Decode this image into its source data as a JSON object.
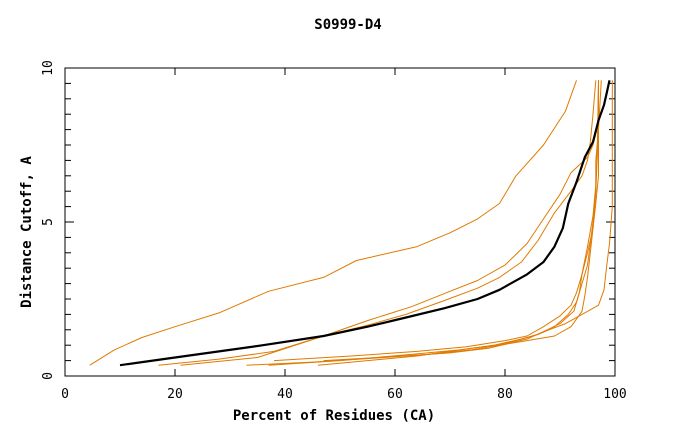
{
  "chart_data": {
    "type": "line",
    "title": "S0999-D4",
    "xlabel": "Percent of Residues (CA)",
    "ylabel": "Distance Cutoff, A",
    "xlim": [
      0,
      100
    ],
    "ylim": [
      0,
      10
    ],
    "x_ticks": [
      0,
      20,
      40,
      60,
      80,
      100
    ],
    "y_ticks": [
      0,
      5,
      10
    ],
    "grid": false,
    "legend": "none",
    "colors": {
      "reference": "#000000",
      "models": "#e07a00"
    },
    "series": [
      {
        "role": "reference",
        "points": [
          [
            10,
            0.35
          ],
          [
            14,
            0.45
          ],
          [
            20,
            0.6
          ],
          [
            28,
            0.8
          ],
          [
            36,
            1.0
          ],
          [
            47,
            1.3
          ],
          [
            55,
            1.6
          ],
          [
            62,
            1.9
          ],
          [
            69,
            2.2
          ],
          [
            75,
            2.5
          ],
          [
            79,
            2.8
          ],
          [
            84,
            3.3
          ],
          [
            87,
            3.7
          ],
          [
            89,
            4.2
          ],
          [
            90.5,
            4.8
          ],
          [
            91.5,
            5.6
          ],
          [
            93,
            6.3
          ],
          [
            94.5,
            7.1
          ],
          [
            96,
            7.6
          ],
          [
            97,
            8.3
          ],
          [
            98,
            8.8
          ],
          [
            98.5,
            9.2
          ],
          [
            99,
            9.6
          ]
        ]
      },
      {
        "role": "model",
        "points": [
          [
            4.5,
            0.35
          ],
          [
            9,
            0.85
          ],
          [
            14,
            1.25
          ],
          [
            20,
            1.6
          ],
          [
            28,
            2.05
          ],
          [
            37,
            2.75
          ],
          [
            47,
            3.2
          ],
          [
            53,
            3.75
          ],
          [
            64,
            4.2
          ],
          [
            70,
            4.65
          ],
          [
            75,
            5.1
          ],
          [
            79,
            5.6
          ],
          [
            82,
            6.5
          ],
          [
            87,
            7.5
          ],
          [
            91,
            8.6
          ],
          [
            93,
            9.6
          ]
        ]
      },
      {
        "role": "model",
        "points": [
          [
            17,
            0.35
          ],
          [
            28,
            0.55
          ],
          [
            38,
            0.8
          ],
          [
            47,
            1.3
          ],
          [
            55,
            1.8
          ],
          [
            63,
            2.25
          ],
          [
            70,
            2.75
          ],
          [
            75,
            3.1
          ],
          [
            80,
            3.6
          ],
          [
            84,
            4.3
          ],
          [
            87,
            5.1
          ],
          [
            90,
            5.9
          ],
          [
            92,
            6.6
          ],
          [
            95,
            7.1
          ],
          [
            96,
            7.5
          ],
          [
            97,
            8.2
          ],
          [
            97,
            9.6
          ]
        ]
      },
      {
        "role": "model",
        "points": [
          [
            21,
            0.35
          ],
          [
            35,
            0.6
          ],
          [
            47,
            1.3
          ],
          [
            55,
            1.65
          ],
          [
            62,
            2.0
          ],
          [
            69,
            2.45
          ],
          [
            75,
            2.85
          ],
          [
            79,
            3.2
          ],
          [
            83,
            3.7
          ],
          [
            86,
            4.4
          ],
          [
            89,
            5.3
          ],
          [
            92,
            6.0
          ],
          [
            94,
            6.5
          ],
          [
            95,
            7.0
          ],
          [
            95.5,
            7.6
          ],
          [
            96,
            8.5
          ],
          [
            96.5,
            9.6
          ]
        ]
      },
      {
        "role": "model",
        "points": [
          [
            33,
            0.35
          ],
          [
            45,
            0.45
          ],
          [
            58,
            0.6
          ],
          [
            70,
            0.75
          ],
          [
            77,
            0.9
          ],
          [
            84,
            1.2
          ],
          [
            89,
            1.6
          ],
          [
            91.5,
            2.0
          ],
          [
            93,
            2.4
          ],
          [
            94,
            3.0
          ],
          [
            95,
            3.6
          ],
          [
            95.5,
            4.3
          ],
          [
            96,
            5.0
          ],
          [
            96.5,
            6.0
          ],
          [
            96.5,
            7.0
          ],
          [
            97,
            8.0
          ],
          [
            97,
            9.6
          ]
        ]
      },
      {
        "role": "model",
        "points": [
          [
            37,
            0.35
          ],
          [
            50,
            0.5
          ],
          [
            63,
            0.7
          ],
          [
            72,
            0.85
          ],
          [
            80,
            1.05
          ],
          [
            86,
            1.35
          ],
          [
            90,
            1.7
          ],
          [
            92.5,
            2.1
          ],
          [
            93.5,
            2.7
          ],
          [
            94,
            3.3
          ],
          [
            95,
            4.0
          ],
          [
            96,
            4.8
          ],
          [
            96.5,
            5.6
          ],
          [
            97,
            6.5
          ],
          [
            97,
            8.0
          ],
          [
            97.5,
            9.6
          ]
        ]
      },
      {
        "role": "model",
        "points": [
          [
            38,
            0.5
          ],
          [
            52,
            0.65
          ],
          [
            64,
            0.8
          ],
          [
            73,
            0.95
          ],
          [
            80,
            1.15
          ],
          [
            84,
            1.3
          ],
          [
            87,
            1.6
          ],
          [
            90,
            1.95
          ],
          [
            92,
            2.3
          ],
          [
            93,
            2.7
          ],
          [
            94,
            3.3
          ],
          [
            95,
            4.2
          ],
          [
            96,
            5.2
          ],
          [
            96.5,
            6.2
          ],
          [
            96.8,
            7.5
          ],
          [
            97,
            9.6
          ]
        ]
      },
      {
        "role": "model",
        "points": [
          [
            46,
            0.35
          ],
          [
            55,
            0.5
          ],
          [
            64,
            0.65
          ],
          [
            72,
            0.85
          ],
          [
            78,
            1.0
          ],
          [
            83,
            1.2
          ],
          [
            86,
            1.35
          ],
          [
            88,
            1.5
          ],
          [
            91,
            1.7
          ],
          [
            94,
            2.0
          ],
          [
            97,
            2.3
          ],
          [
            98,
            2.8
          ],
          [
            98.5,
            3.6
          ],
          [
            99,
            4.3
          ],
          [
            99.5,
            5.5
          ],
          [
            99.5,
            7.5
          ],
          [
            99.5,
            9.6
          ]
        ]
      },
      {
        "role": "model",
        "points": [
          [
            47,
            0.5
          ],
          [
            57,
            0.6
          ],
          [
            66,
            0.7
          ],
          [
            74,
            0.85
          ],
          [
            79,
            1.0
          ],
          [
            84,
            1.15
          ],
          [
            89,
            1.3
          ],
          [
            92,
            1.6
          ],
          [
            94,
            2.1
          ],
          [
            94.5,
            2.6
          ],
          [
            95,
            3.2
          ],
          [
            95.5,
            4.0
          ],
          [
            96,
            4.8
          ],
          [
            96.5,
            6.0
          ],
          [
            96.8,
            7.2
          ],
          [
            97,
            9.6
          ]
        ]
      }
    ]
  }
}
